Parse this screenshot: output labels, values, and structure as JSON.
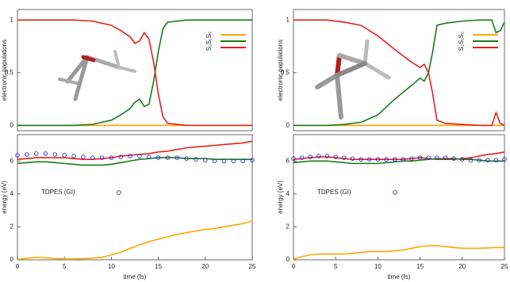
{
  "chart_data": [
    {
      "type": "line",
      "ylabel": "electronic populations",
      "ylim": [
        -0.05,
        1.1
      ],
      "yticks": [
        0,
        0.5,
        1
      ],
      "xlim": [
        0,
        25
      ],
      "legend": "top-right",
      "x": [
        0,
        2,
        4,
        6,
        8,
        10,
        11,
        12,
        12.5,
        13,
        13.5,
        14,
        14.5,
        15,
        15.5,
        16,
        18,
        20,
        22,
        24,
        25
      ],
      "series": [
        {
          "name": "S₀",
          "color": "#ffa500",
          "values": [
            0,
            0,
            0,
            0,
            0,
            0,
            0,
            0,
            0,
            0,
            0,
            0,
            0,
            0,
            0,
            0,
            0,
            0,
            0,
            0,
            0
          ]
        },
        {
          "name": "S₁",
          "color": "#1a7a1a",
          "values": [
            0,
            0,
            0,
            0,
            0.01,
            0.05,
            0.1,
            0.16,
            0.22,
            0.25,
            0.18,
            0.2,
            0.42,
            0.7,
            0.92,
            0.98,
            1,
            1,
            1,
            1,
            1
          ]
        },
        {
          "name": "S₂",
          "color": "#e8201a",
          "values": [
            1,
            1,
            1,
            1,
            0.99,
            0.95,
            0.9,
            0.84,
            0.78,
            0.8,
            0.88,
            0.82,
            0.6,
            0.3,
            0.08,
            0.02,
            0,
            0,
            0,
            0,
            0
          ]
        }
      ]
    },
    {
      "type": "line",
      "ylabel": "electronic populations",
      "ylim": [
        -0.05,
        1.1
      ],
      "yticks": [
        0,
        0.5,
        1
      ],
      "xlim": [
        0,
        25
      ],
      "legend": "top-right",
      "x": [
        0,
        2,
        4,
        6,
        8,
        10,
        12,
        14,
        15,
        15.5,
        16,
        16.5,
        17,
        18,
        20,
        22,
        23.5,
        24,
        24.5,
        25
      ],
      "series": [
        {
          "name": "S₀",
          "color": "#ffa500",
          "values": [
            0,
            0,
            0,
            0,
            0,
            0,
            0,
            0,
            0,
            0,
            0,
            0,
            0,
            0,
            0,
            0,
            0,
            0,
            0,
            0
          ]
        },
        {
          "name": "S₁",
          "color": "#1a7a1a",
          "values": [
            0,
            0,
            0,
            0.01,
            0.03,
            0.1,
            0.25,
            0.38,
            0.45,
            0.42,
            0.5,
            0.7,
            0.95,
            0.97,
            0.99,
            1,
            1,
            0.88,
            0.9,
            0.98
          ]
        },
        {
          "name": "S₂",
          "color": "#e8201a",
          "values": [
            1,
            1,
            1,
            0.98,
            0.95,
            0.85,
            0.72,
            0.6,
            0.55,
            0.58,
            0.5,
            0.3,
            0.05,
            0.02,
            0.01,
            0,
            0,
            0.12,
            0.02,
            0
          ]
        }
      ]
    },
    {
      "type": "line",
      "ylabel": "energy (eV)",
      "xlabel": "time (fs)",
      "ylim": [
        0,
        7.6
      ],
      "yticks": [
        0,
        2,
        4,
        6
      ],
      "xlim": [
        0,
        25
      ],
      "xticks": [
        0,
        5,
        10,
        15,
        20,
        25
      ],
      "legend": "center-left",
      "x": [
        0,
        1,
        2,
        3,
        4,
        5,
        6,
        7,
        8,
        9,
        10,
        11,
        12,
        13,
        14,
        15,
        16,
        17,
        18,
        19,
        20,
        21,
        22,
        23,
        24,
        25
      ],
      "series": [
        {
          "color": "#e8201a",
          "values": [
            6.1,
            6.15,
            6.2,
            6.2,
            6.2,
            6.2,
            6.15,
            6.1,
            6.1,
            6.15,
            6.2,
            6.3,
            6.35,
            6.4,
            6.45,
            6.55,
            6.6,
            6.7,
            6.8,
            6.85,
            6.9,
            6.95,
            7.0,
            7.05,
            7.1,
            7.2
          ]
        },
        {
          "color": "#1a7a1a",
          "values": [
            5.85,
            5.9,
            5.95,
            5.95,
            5.9,
            5.85,
            5.8,
            5.75,
            5.75,
            5.75,
            5.8,
            5.9,
            6.0,
            6.1,
            6.15,
            6.2,
            6.2,
            6.2,
            6.15,
            6.15,
            6.15,
            6.1,
            6.1,
            6.1,
            6.1,
            6.1
          ]
        },
        {
          "color": "#ffa500",
          "values": [
            0.02,
            0.1,
            0.15,
            0.12,
            0.08,
            0.05,
            0.05,
            0.07,
            0.1,
            0.15,
            0.3,
            0.45,
            0.7,
            0.9,
            1.1,
            1.25,
            1.4,
            1.55,
            1.65,
            1.75,
            1.85,
            1.9,
            2.0,
            2.1,
            2.2,
            2.35
          ]
        },
        {
          "name": "TDPES (GI)",
          "type": "scatter",
          "color": "#2a2ae0",
          "values": [
            6.35,
            6.4,
            6.45,
            6.45,
            6.4,
            6.35,
            6.3,
            6.25,
            6.2,
            6.2,
            6.2,
            6.25,
            6.3,
            6.3,
            6.25,
            6.2,
            6.2,
            6.2,
            6.15,
            6.1,
            6.05,
            6.0,
            6.0,
            6.0,
            6.0,
            6.05
          ]
        }
      ]
    },
    {
      "type": "line",
      "ylabel": "energy (eV)",
      "xlabel": "time (fs)",
      "ylim": [
        0,
        7.6
      ],
      "yticks": [
        0,
        2,
        4,
        6
      ],
      "xlim": [
        0,
        25
      ],
      "xticks": [
        0,
        5,
        10,
        15,
        20,
        25
      ],
      "legend": "center-left",
      "x": [
        0,
        1,
        2,
        3,
        4,
        5,
        6,
        7,
        8,
        9,
        10,
        11,
        12,
        13,
        14,
        15,
        16,
        17,
        18,
        19,
        20,
        21,
        22,
        23,
        24,
        25
      ],
      "series": [
        {
          "color": "#e8201a",
          "values": [
            6.1,
            6.15,
            6.2,
            6.25,
            6.25,
            6.2,
            6.15,
            6.1,
            6.1,
            6.1,
            6.1,
            6.1,
            6.1,
            6.1,
            6.15,
            6.2,
            6.15,
            6.1,
            6.1,
            6.1,
            6.15,
            6.2,
            6.3,
            6.4,
            6.45,
            6.55
          ]
        },
        {
          "color": "#1a7a1a",
          "values": [
            5.9,
            5.95,
            6.0,
            6.0,
            6.0,
            5.95,
            5.9,
            5.85,
            5.85,
            5.85,
            5.85,
            5.9,
            5.95,
            6.0,
            6.0,
            6.05,
            6.1,
            6.15,
            6.15,
            6.15,
            6.1,
            6.1,
            6.05,
            6.0,
            6.0,
            6.0
          ]
        },
        {
          "color": "#ffa500",
          "values": [
            0.05,
            0.2,
            0.3,
            0.35,
            0.35,
            0.35,
            0.35,
            0.4,
            0.45,
            0.5,
            0.5,
            0.5,
            0.55,
            0.6,
            0.7,
            0.8,
            0.85,
            0.85,
            0.8,
            0.75,
            0.7,
            0.7,
            0.7,
            0.72,
            0.75,
            0.75
          ]
        },
        {
          "name": "TDPES (GI)",
          "type": "scatter",
          "color": "#2a2ae0",
          "values": [
            6.15,
            6.2,
            6.25,
            6.3,
            6.3,
            6.25,
            6.2,
            6.15,
            6.1,
            6.1,
            6.1,
            6.1,
            6.1,
            6.1,
            6.15,
            6.2,
            6.2,
            6.2,
            6.2,
            6.15,
            6.1,
            6.05,
            6.05,
            6.05,
            6.05,
            6.1
          ]
        }
      ]
    }
  ]
}
